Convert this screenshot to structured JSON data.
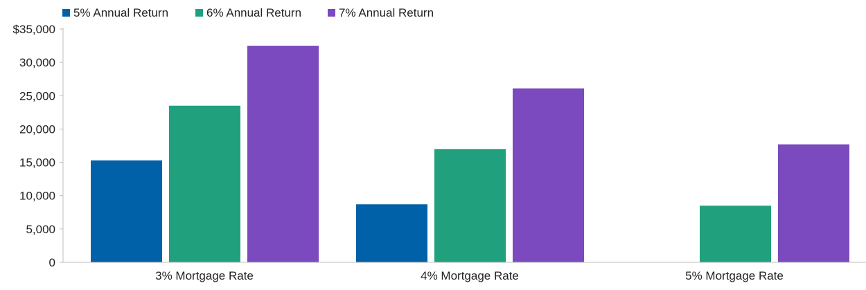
{
  "chart_data": {
    "type": "bar",
    "categories": [
      "3% Mortgage Rate",
      "4% Mortgage Rate",
      "5% Mortgage Rate"
    ],
    "series": [
      {
        "name": "5% Annual Return",
        "color": "#0061a8",
        "values": [
          15300,
          8700,
          0
        ]
      },
      {
        "name": "6% Annual Return",
        "color": "#21a07e",
        "values": [
          23500,
          17000,
          8500
        ]
      },
      {
        "name": "7% Annual Return",
        "color": "#7a4abe",
        "values": [
          32500,
          26100,
          17700
        ]
      }
    ],
    "y_ticks": [
      "0",
      "5,000",
      "10,000",
      "15,000",
      "20,000",
      "25,000",
      "30,000",
      "$35,000"
    ],
    "ylim": [
      0,
      35000
    ],
    "title": "",
    "xlabel": "",
    "ylabel": "",
    "grid": false,
    "legend_position": "top-left"
  }
}
